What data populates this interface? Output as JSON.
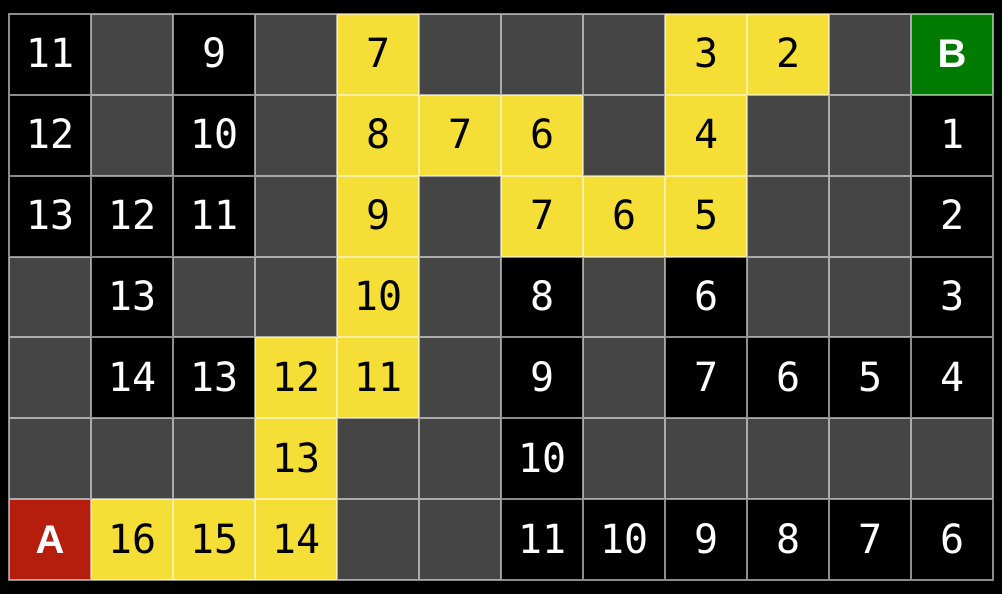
{
  "grid": {
    "rows": 7,
    "cols": 12,
    "start_label": "A",
    "goal_label": "B",
    "colors": {
      "page_background": "#000000",
      "empty_cell": "#454545",
      "visited_cell": "#000000",
      "path_cell": "#F5DE35",
      "start_cell": "#B51D0D",
      "goal_cell": "#007A00",
      "grid_line": "rgba(255,255,255,0.55)",
      "number_on_dark": "#ffffff",
      "number_on_path": "#000000"
    },
    "cells": [
      [
        {
          "label": "11",
          "type": "dark"
        },
        {
          "label": "",
          "type": "empty"
        },
        {
          "label": "9",
          "type": "dark"
        },
        {
          "label": "",
          "type": "empty"
        },
        {
          "label": "7",
          "type": "path"
        },
        {
          "label": "",
          "type": "empty"
        },
        {
          "label": "",
          "type": "empty"
        },
        {
          "label": "",
          "type": "empty"
        },
        {
          "label": "3",
          "type": "path"
        },
        {
          "label": "2",
          "type": "path"
        },
        {
          "label": "",
          "type": "empty"
        },
        {
          "label": "B",
          "type": "goal"
        }
      ],
      [
        {
          "label": "12",
          "type": "dark"
        },
        {
          "label": "",
          "type": "empty"
        },
        {
          "label": "10",
          "type": "dark"
        },
        {
          "label": "",
          "type": "empty"
        },
        {
          "label": "8",
          "type": "path"
        },
        {
          "label": "7",
          "type": "path"
        },
        {
          "label": "6",
          "type": "path"
        },
        {
          "label": "",
          "type": "empty"
        },
        {
          "label": "4",
          "type": "path"
        },
        {
          "label": "",
          "type": "empty"
        },
        {
          "label": "",
          "type": "empty"
        },
        {
          "label": "1",
          "type": "dark"
        }
      ],
      [
        {
          "label": "13",
          "type": "dark"
        },
        {
          "label": "12",
          "type": "dark"
        },
        {
          "label": "11",
          "type": "dark"
        },
        {
          "label": "",
          "type": "empty"
        },
        {
          "label": "9",
          "type": "path"
        },
        {
          "label": "",
          "type": "empty"
        },
        {
          "label": "7",
          "type": "path"
        },
        {
          "label": "6",
          "type": "path"
        },
        {
          "label": "5",
          "type": "path"
        },
        {
          "label": "",
          "type": "empty"
        },
        {
          "label": "",
          "type": "empty"
        },
        {
          "label": "2",
          "type": "dark"
        }
      ],
      [
        {
          "label": "",
          "type": "empty"
        },
        {
          "label": "13",
          "type": "dark"
        },
        {
          "label": "",
          "type": "empty"
        },
        {
          "label": "",
          "type": "empty"
        },
        {
          "label": "10",
          "type": "path"
        },
        {
          "label": "",
          "type": "empty"
        },
        {
          "label": "8",
          "type": "dark"
        },
        {
          "label": "",
          "type": "empty"
        },
        {
          "label": "6",
          "type": "dark"
        },
        {
          "label": "",
          "type": "empty"
        },
        {
          "label": "",
          "type": "empty"
        },
        {
          "label": "3",
          "type": "dark"
        }
      ],
      [
        {
          "label": "",
          "type": "empty"
        },
        {
          "label": "14",
          "type": "dark"
        },
        {
          "label": "13",
          "type": "dark"
        },
        {
          "label": "12",
          "type": "path"
        },
        {
          "label": "11",
          "type": "path"
        },
        {
          "label": "",
          "type": "empty"
        },
        {
          "label": "9",
          "type": "dark"
        },
        {
          "label": "",
          "type": "empty"
        },
        {
          "label": "7",
          "type": "dark"
        },
        {
          "label": "6",
          "type": "dark"
        },
        {
          "label": "5",
          "type": "dark"
        },
        {
          "label": "4",
          "type": "dark"
        }
      ],
      [
        {
          "label": "",
          "type": "empty"
        },
        {
          "label": "",
          "type": "empty"
        },
        {
          "label": "",
          "type": "empty"
        },
        {
          "label": "13",
          "type": "path"
        },
        {
          "label": "",
          "type": "empty"
        },
        {
          "label": "",
          "type": "empty"
        },
        {
          "label": "10",
          "type": "dark"
        },
        {
          "label": "",
          "type": "empty"
        },
        {
          "label": "",
          "type": "empty"
        },
        {
          "label": "",
          "type": "empty"
        },
        {
          "label": "",
          "type": "empty"
        },
        {
          "label": "",
          "type": "empty"
        }
      ],
      [
        {
          "label": "A",
          "type": "start"
        },
        {
          "label": "16",
          "type": "path"
        },
        {
          "label": "15",
          "type": "path"
        },
        {
          "label": "14",
          "type": "path"
        },
        {
          "label": "",
          "type": "empty"
        },
        {
          "label": "",
          "type": "empty"
        },
        {
          "label": "11",
          "type": "dark"
        },
        {
          "label": "10",
          "type": "dark"
        },
        {
          "label": "9",
          "type": "dark"
        },
        {
          "label": "8",
          "type": "dark"
        },
        {
          "label": "7",
          "type": "dark"
        },
        {
          "label": "6",
          "type": "dark"
        }
      ]
    ]
  }
}
